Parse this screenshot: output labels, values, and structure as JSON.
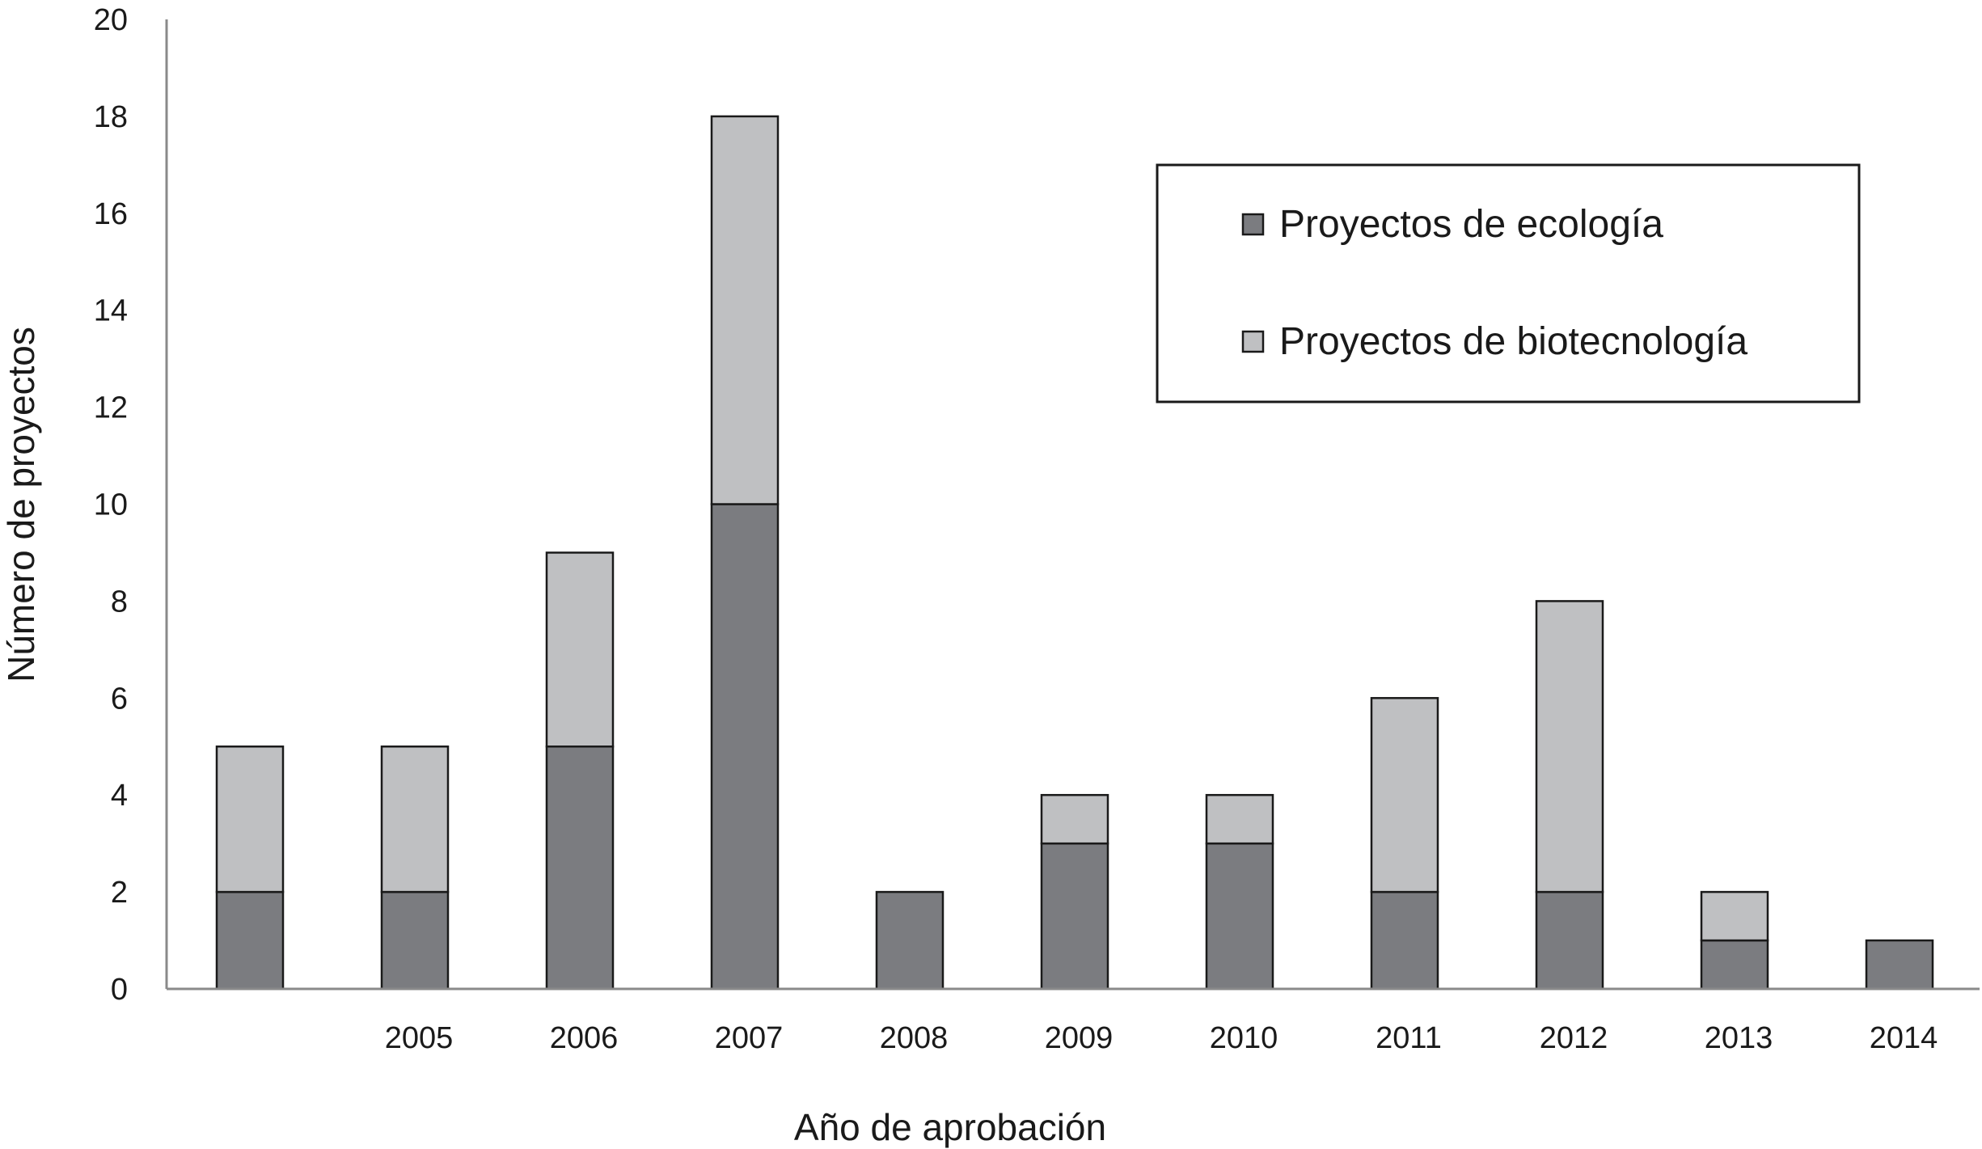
{
  "chart_data": {
    "type": "bar",
    "stacked": true,
    "title": "",
    "xlabel": "Año de aprobación",
    "ylabel": "Número de proyectos",
    "ylim": [
      0,
      20
    ],
    "yticks": [
      "0",
      "2",
      "4",
      "6",
      "8",
      "10",
      "12",
      "14",
      "16",
      "18",
      "20"
    ],
    "categories": [
      "",
      "2005",
      "2006",
      "2007",
      "2008",
      "2009",
      "2010",
      "2011",
      "2012",
      "2013",
      "2014"
    ],
    "series": [
      {
        "name": "Proyectos de ecología",
        "color": "#7b7c80",
        "values": [
          2,
          2,
          5,
          10,
          2,
          3,
          3,
          2,
          2,
          1,
          1
        ]
      },
      {
        "name": "Proyectos de biotecnología",
        "color": "#bfc0c2",
        "values": [
          3,
          3,
          4,
          8,
          0,
          1,
          1,
          4,
          6,
          1,
          0
        ]
      }
    ],
    "grid": false,
    "legend_position": "top-right"
  }
}
